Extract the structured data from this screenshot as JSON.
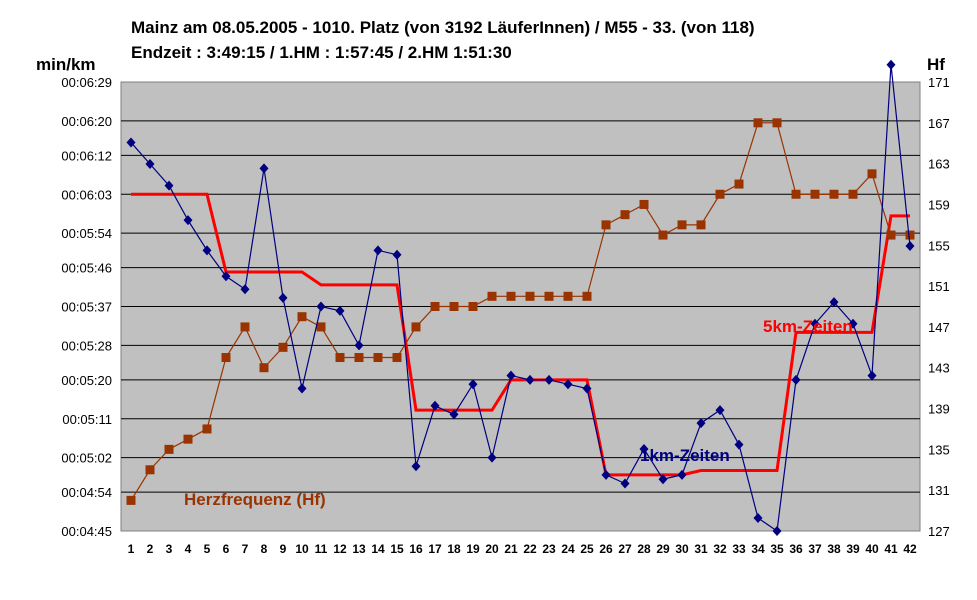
{
  "title_line1": "Mainz am 08.05.2005 - 1010. Platz (von 3192 LäuferInnen) / M55 - 33. (von 118)",
  "title_line2": "Endzeit : 3:49:15  / 1.HM : 1:57:45  / 2.HM  1:51:30",
  "chart_data": {
    "type": "line",
    "ylabel_left": "min/km",
    "ylabel_right": "Hf",
    "x": [
      1,
      2,
      3,
      4,
      5,
      6,
      7,
      8,
      9,
      10,
      11,
      12,
      13,
      14,
      15,
      16,
      17,
      18,
      19,
      20,
      21,
      22,
      23,
      24,
      25,
      26,
      27,
      28,
      29,
      30,
      31,
      32,
      33,
      34,
      35,
      36,
      37,
      38,
      39,
      40,
      41,
      42
    ],
    "y_left": {
      "ticks": [
        "00:04:45",
        "00:04:54",
        "00:05:02",
        "00:05:11",
        "00:05:20",
        "00:05:28",
        "00:05:37",
        "00:05:46",
        "00:05:54",
        "00:06:03",
        "00:06:12",
        "00:06:20",
        "00:06:29"
      ],
      "range_seconds": [
        285,
        389
      ]
    },
    "y_right": {
      "ticks": [
        127,
        131,
        135,
        139,
        143,
        147,
        151,
        155,
        159,
        163,
        167,
        171
      ],
      "range": [
        127,
        171
      ]
    },
    "series": [
      {
        "name": "1km-Zeiten",
        "axis": "left",
        "color": "#000080",
        "marker": "diamond",
        "values_seconds": [
          375,
          370,
          365,
          357,
          350,
          344,
          341,
          369,
          339,
          318,
          337,
          336,
          328,
          350,
          349,
          300,
          314,
          312,
          319,
          302,
          321,
          320,
          320,
          319,
          318,
          298,
          296,
          304,
          297,
          298,
          310,
          313,
          305,
          288,
          285,
          320,
          333,
          338,
          333,
          321,
          393,
          351
        ]
      },
      {
        "name": "Herzfrequenz (Hf)",
        "axis": "right",
        "color": "#993300",
        "marker": "square",
        "values": [
          130,
          133,
          135,
          136,
          137,
          144,
          147,
          143,
          145,
          148,
          147,
          144,
          144,
          144,
          144,
          147,
          149,
          149,
          149,
          150,
          150,
          150,
          150,
          150,
          150,
          157,
          158,
          159,
          156,
          157,
          157,
          160,
          161,
          167,
          167,
          160,
          160,
          160,
          160,
          162,
          156,
          156
        ]
      },
      {
        "name": "5km-Zeiten",
        "axis": "left",
        "color": "#ff0000",
        "marker": "none",
        "segments": [
          {
            "x": [
              1,
              5
            ],
            "value_seconds": 363
          },
          {
            "x": [
              6,
              10
            ],
            "value_seconds": 345
          },
          {
            "x": [
              11,
              15
            ],
            "value_seconds": 342
          },
          {
            "x": [
              16,
              20
            ],
            "value_seconds": 313
          },
          {
            "x": [
              21,
              25
            ],
            "value_seconds": 320
          },
          {
            "x": [
              26,
              30
            ],
            "value_seconds": 298
          },
          {
            "x": [
              31,
              35
            ],
            "value_seconds": 299
          },
          {
            "x": [
              36,
              40
            ],
            "value_seconds": 331
          },
          {
            "x": [
              41,
              42
            ],
            "value_seconds": 358
          }
        ]
      }
    ],
    "annotations": [
      "1km-Zeiten",
      "Herzfrequenz (Hf)",
      "5km-Zeiten"
    ],
    "grid": "horizontal",
    "plot_background": "#c0c0c0"
  }
}
